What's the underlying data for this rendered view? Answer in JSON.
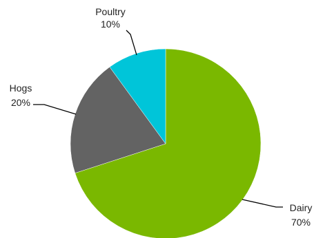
{
  "chart_data": {
    "type": "pie",
    "title": "",
    "slices": [
      {
        "label": "Dairy",
        "value": 70,
        "percent_label": "70%",
        "color": "#7ab800"
      },
      {
        "label": "Hogs",
        "value": 20,
        "percent_label": "20%",
        "color": "#636363"
      },
      {
        "label": "Poultry",
        "value": 10,
        "percent_label": "10%",
        "color": "#00c5d9"
      }
    ],
    "start": "12 o'clock",
    "direction": "clockwise",
    "legend": "none",
    "labels": "outside with leader lines"
  }
}
